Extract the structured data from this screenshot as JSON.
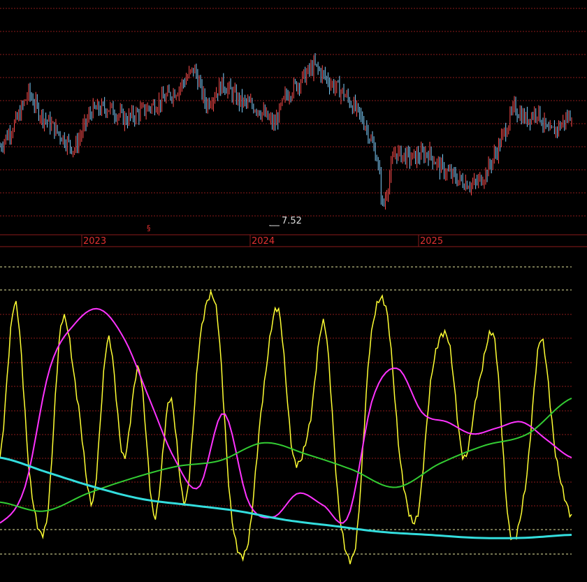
{
  "chart_data": [
    {
      "type": "candlestick",
      "x_labels": [
        "2023",
        "2024",
        "2025"
      ],
      "min_annotation": "7.52",
      "event_marker": "§",
      "colors": {
        "up": "#ff4d4d",
        "down": "#7fd0ff",
        "grid": "#8b1a1a",
        "axis_text": "#e03030"
      },
      "close_series": [
        {
          "t": 0,
          "v": 9.7
        },
        {
          "t": 0.03,
          "v": 10.6
        },
        {
          "t": 0.05,
          "v": 11.5
        },
        {
          "t": 0.07,
          "v": 10.8
        },
        {
          "t": 0.1,
          "v": 10.2
        },
        {
          "t": 0.13,
          "v": 9.6
        },
        {
          "t": 0.16,
          "v": 10.9
        },
        {
          "t": 0.19,
          "v": 11.0
        },
        {
          "t": 0.22,
          "v": 10.6
        },
        {
          "t": 0.25,
          "v": 10.9
        },
        {
          "t": 0.28,
          "v": 11.2
        },
        {
          "t": 0.31,
          "v": 11.6
        },
        {
          "t": 0.34,
          "v": 12.3
        },
        {
          "t": 0.36,
          "v": 11.1
        },
        {
          "t": 0.39,
          "v": 11.8
        },
        {
          "t": 0.42,
          "v": 11.2
        },
        {
          "t": 0.45,
          "v": 11.0
        },
        {
          "t": 0.48,
          "v": 10.4
        },
        {
          "t": 0.5,
          "v": 11.4
        },
        {
          "t": 0.52,
          "v": 11.8
        },
        {
          "t": 0.55,
          "v": 12.4
        },
        {
          "t": 0.58,
          "v": 11.8
        },
        {
          "t": 0.6,
          "v": 11.5
        },
        {
          "t": 0.62,
          "v": 11.0
        },
        {
          "t": 0.64,
          "v": 10.4
        },
        {
          "t": 0.66,
          "v": 9.3
        },
        {
          "t": 0.67,
          "v": 7.6
        },
        {
          "t": 0.69,
          "v": 9.5
        },
        {
          "t": 0.72,
          "v": 9.3
        },
        {
          "t": 0.75,
          "v": 9.5
        },
        {
          "t": 0.77,
          "v": 9.0
        },
        {
          "t": 0.8,
          "v": 8.6
        },
        {
          "t": 0.83,
          "v": 8.4
        },
        {
          "t": 0.85,
          "v": 8.8
        },
        {
          "t": 0.87,
          "v": 9.6
        },
        {
          "t": 0.9,
          "v": 11.0
        },
        {
          "t": 0.92,
          "v": 10.6
        },
        {
          "t": 0.94,
          "v": 10.9
        },
        {
          "t": 0.96,
          "v": 10.1
        },
        {
          "t": 0.98,
          "v": 10.4
        },
        {
          "t": 1.0,
          "v": 10.8
        }
      ]
    },
    {
      "type": "line",
      "series": [
        {
          "color": "#ffff33",
          "values": [
            40,
            92,
            30,
            18,
            86,
            60,
            25,
            80,
            40,
            70,
            20,
            60,
            25,
            82,
            90,
            20,
            10,
            60,
            90,
            40,
            50,
            85,
            20,
            10,
            80,
            90,
            35,
            20,
            70,
            80,
            40,
            65,
            80,
            15,
            30,
            80,
            40,
            20
          ]
        },
        {
          "color": "#ff33ff",
          "values": [
            18,
            30,
            70,
            85,
            90,
            80,
            60,
            40,
            30,
            55,
            25,
            20,
            28,
            24,
            20,
            60,
            70,
            55,
            52,
            48,
            50,
            52,
            46,
            40
          ]
        },
        {
          "color": "#33cc33",
          "values": [
            25,
            22,
            28,
            33,
            37,
            39,
            45,
            41,
            36,
            30,
            38,
            44,
            48,
            60
          ]
        },
        {
          "color": "#33dddd",
          "values": [
            40,
            35,
            30,
            26,
            24,
            22,
            19,
            17,
            15,
            14,
            13,
            13,
            14
          ]
        }
      ]
    }
  ]
}
